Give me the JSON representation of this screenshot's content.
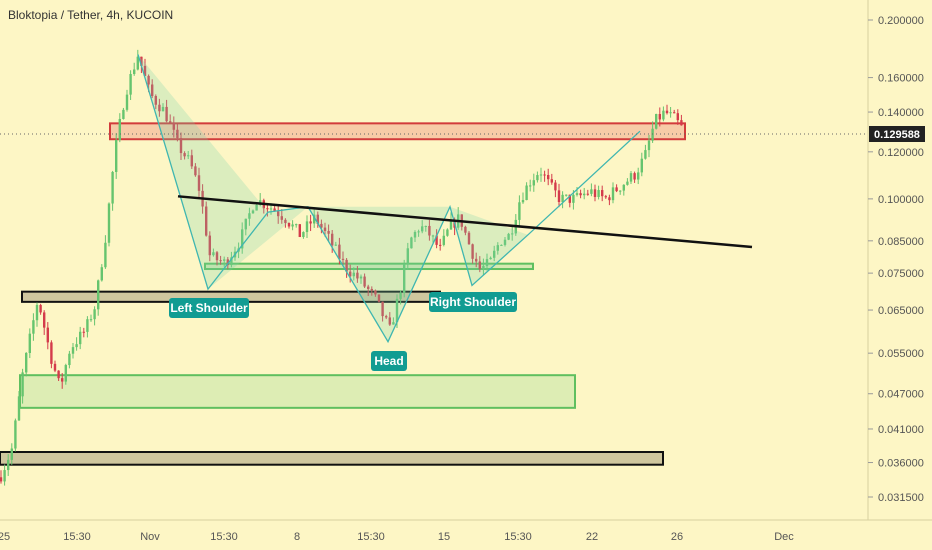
{
  "header": {
    "title": "Bloktopia / Tether, 4h, KUCOIN"
  },
  "price_tag": {
    "value": "0.129588"
  },
  "annotations": {
    "left_shoulder": "Left Shoulder",
    "head": "Head",
    "right_shoulder": "Right Shoulder"
  },
  "colors": {
    "background": "#fdf6c5",
    "bull": "#66c46e",
    "bear": "#d43b4b",
    "pattern": "#3fb6b0",
    "label_bg": "#119c92",
    "resistance_box": "#d23b3b",
    "support_box": "#5fbf5f"
  },
  "chart_data": {
    "type": "candlestick",
    "title": "Bloktopia / Tether, 4h, KUCOIN",
    "x_ticks": [
      "25",
      "15:30",
      "Nov",
      "15:30",
      "8",
      "15:30",
      "15",
      "15:30",
      "22",
      "26",
      "Dec"
    ],
    "y_ticks": [
      "0.200000",
      "0.160000",
      "0.140000",
      "0.120000",
      "0.100000",
      "0.085000",
      "0.075000",
      "0.065000",
      "0.055000",
      "0.047000",
      "0.041000",
      "0.036000",
      "0.031500"
    ],
    "y_scale": "log",
    "y_range": [
      0.03,
      0.21
    ],
    "last_price": 0.129588,
    "price_path": [
      [
        0,
        0.034
      ],
      [
        12,
        0.038
      ],
      [
        22,
        0.05
      ],
      [
        38,
        0.068
      ],
      [
        50,
        0.055
      ],
      [
        60,
        0.048
      ],
      [
        70,
        0.056
      ],
      [
        85,
        0.06
      ],
      [
        95,
        0.066
      ],
      [
        105,
        0.085
      ],
      [
        115,
        0.12
      ],
      [
        125,
        0.15
      ],
      [
        138,
        0.175
      ],
      [
        150,
        0.15
      ],
      [
        165,
        0.14
      ],
      [
        178,
        0.123
      ],
      [
        190,
        0.115
      ],
      [
        200,
        0.103
      ],
      [
        210,
        0.08
      ],
      [
        225,
        0.078
      ],
      [
        240,
        0.085
      ],
      [
        255,
        0.1
      ],
      [
        270,
        0.097
      ],
      [
        285,
        0.093
      ],
      [
        300,
        0.087
      ],
      [
        315,
        0.093
      ],
      [
        330,
        0.085
      ],
      [
        345,
        0.077
      ],
      [
        360,
        0.073
      ],
      [
        375,
        0.068
      ],
      [
        390,
        0.06
      ],
      [
        400,
        0.07
      ],
      [
        410,
        0.085
      ],
      [
        420,
        0.09
      ],
      [
        430,
        0.087
      ],
      [
        440,
        0.082
      ],
      [
        450,
        0.09
      ],
      [
        460,
        0.093
      ],
      [
        470,
        0.083
      ],
      [
        480,
        0.076
      ],
      [
        490,
        0.078
      ],
      [
        500,
        0.085
      ],
      [
        510,
        0.087
      ],
      [
        520,
        0.1
      ],
      [
        530,
        0.107
      ],
      [
        540,
        0.112
      ],
      [
        550,
        0.105
      ],
      [
        560,
        0.1
      ],
      [
        575,
        0.1
      ],
      [
        590,
        0.103
      ],
      [
        605,
        0.1
      ],
      [
        620,
        0.105
      ],
      [
        635,
        0.11
      ],
      [
        645,
        0.118
      ],
      [
        655,
        0.135
      ],
      [
        665,
        0.14
      ],
      [
        675,
        0.136
      ],
      [
        684,
        0.13
      ]
    ],
    "trendlines": [
      {
        "name": "neckline",
        "points": [
          [
            178,
            0.101
          ],
          [
            752,
            0.083
          ]
        ]
      }
    ],
    "zones": [
      {
        "name": "resistance",
        "x": [
          110,
          685
        ],
        "y": [
          0.126,
          0.134
        ]
      },
      {
        "name": "neck-support",
        "x": [
          205,
          533
        ],
        "y": [
          0.0762,
          0.0778
        ]
      },
      {
        "name": "shoulder-level",
        "x": [
          22,
          440
        ],
        "y": [
          0.0671,
          0.0698
        ]
      },
      {
        "name": "demand",
        "x": [
          20,
          575
        ],
        "y": [
          0.0445,
          0.0505
        ]
      },
      {
        "name": "base",
        "x": [
          0,
          663
        ],
        "y": [
          0.0357,
          0.0375
        ]
      }
    ],
    "pattern_path": [
      [
        138,
        0.175
      ],
      [
        208,
        0.0705
      ],
      [
        268,
        0.095
      ],
      [
        308,
        0.097
      ],
      [
        388,
        0.0575
      ],
      [
        450,
        0.097
      ],
      [
        472,
        0.0715
      ],
      [
        528,
        0.087
      ],
      [
        640,
        0.13
      ]
    ]
  }
}
